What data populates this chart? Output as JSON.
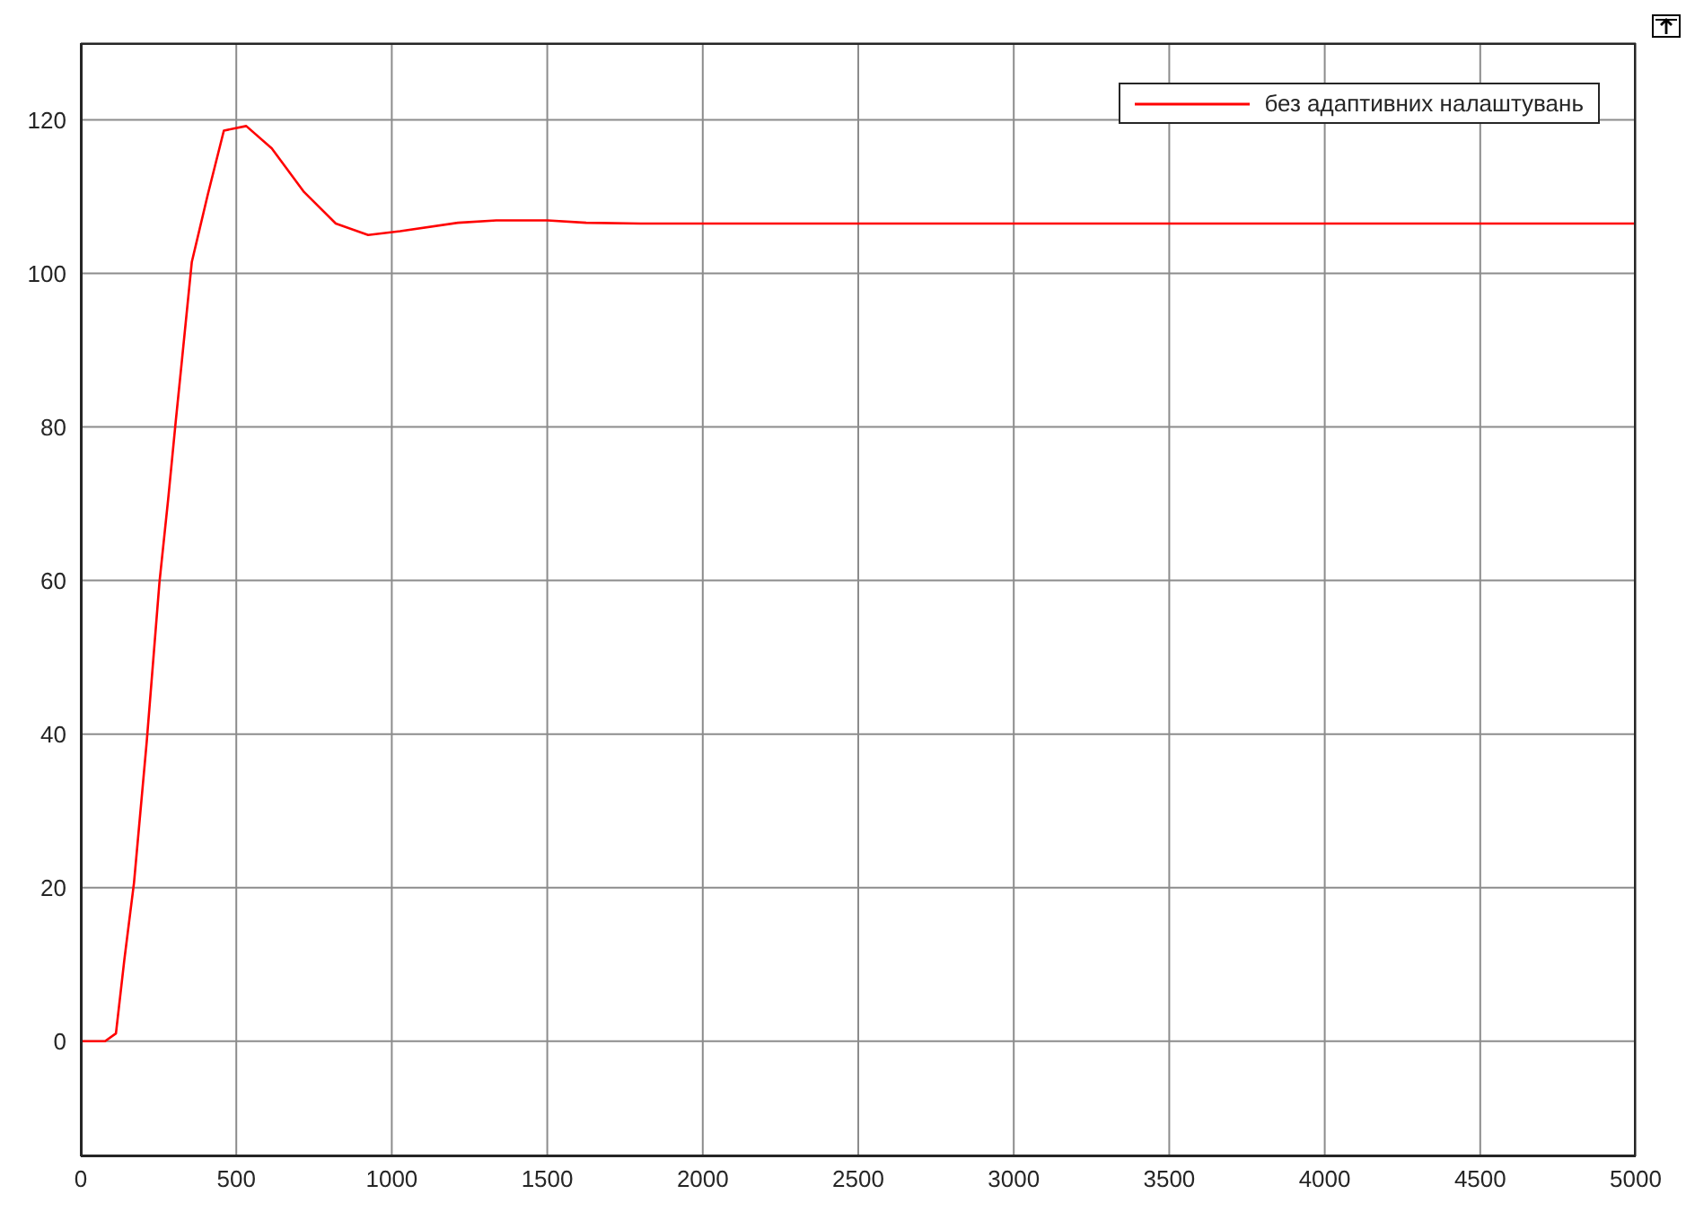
{
  "chart_data": {
    "type": "line",
    "x": [
      0,
      78,
      113,
      140,
      171,
      212,
      253,
      281,
      305,
      326,
      357,
      408,
      460,
      532,
      614,
      718,
      820,
      924,
      1027,
      1213,
      1336,
      1501,
      1625,
      1800,
      2500,
      3500,
      5000
    ],
    "series": [
      {
        "name": "без адаптивних налаштувань",
        "color": "#ff0000",
        "values": [
          0,
          0,
          1,
          10.6,
          20.6,
          39,
          59.8,
          70.6,
          80.6,
          89,
          101.5,
          110.2,
          118.6,
          119.2,
          116.3,
          110.6,
          106.5,
          105,
          105.5,
          106.6,
          106.9,
          106.9,
          106.6,
          106.5,
          106.5,
          106.5,
          106.5
        ]
      }
    ],
    "xlim": [
      0,
      5000
    ],
    "xticks": [
      0,
      500,
      1000,
      1500,
      2000,
      2500,
      3000,
      3500,
      4000,
      4500,
      5000
    ],
    "ylim": [
      -15,
      130
    ],
    "yticks": [
      0,
      20,
      40,
      60,
      80,
      100,
      120
    ],
    "grid": true,
    "legend": "top right",
    "marker": "none",
    "line_style": "solid"
  }
}
